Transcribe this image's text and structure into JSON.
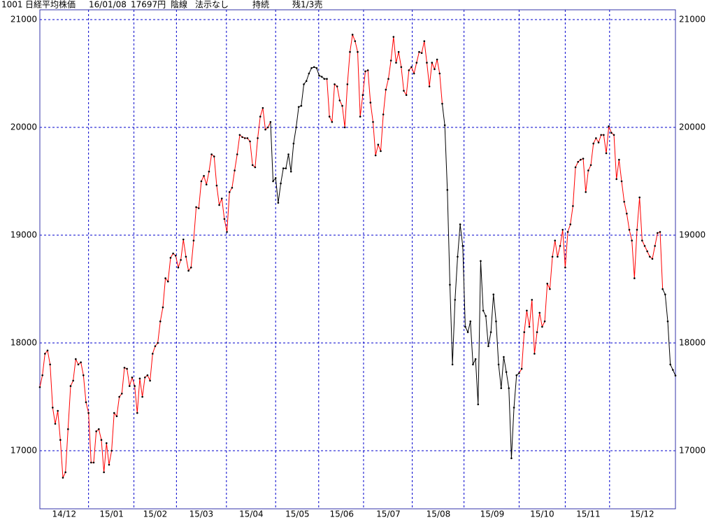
{
  "header": {
    "code": "1001",
    "name": "日経平均株価",
    "date": "16/01/08",
    "price": "17697円",
    "candle": "陰線",
    "signal": "法示なし",
    "trend": "持続",
    "remaining": "残1/3売"
  },
  "chart_data": {
    "type": "line",
    "ylim": [
      16461,
      21091
    ],
    "yticks": [
      17000,
      18000,
      19000,
      20000,
      21000
    ],
    "xlim": [
      0,
      248
    ],
    "xgrid": [
      19,
      36.7,
      53.3,
      72.8,
      92,
      108.8,
      126.3,
      145.3,
      165.5,
      187,
      205,
      222.3
    ],
    "xticks": [
      {
        "value": 9.5,
        "label": "14/12"
      },
      {
        "value": 28,
        "label": "15/01"
      },
      {
        "value": 45,
        "label": "15/02"
      },
      {
        "value": 63,
        "label": "15/03"
      },
      {
        "value": 82.5,
        "label": "15/04"
      },
      {
        "value": 100.5,
        "label": "15/05"
      },
      {
        "value": 117.8,
        "label": "15/06"
      },
      {
        "value": 136,
        "label": "15/07"
      },
      {
        "value": 155.5,
        "label": "15/08"
      },
      {
        "value": 176.5,
        "label": "15/09"
      },
      {
        "value": 196,
        "label": "15/10"
      },
      {
        "value": 214,
        "label": "15/11"
      },
      {
        "value": 235,
        "label": "15/12"
      }
    ],
    "grid": true,
    "grid_color": "#0000cc",
    "frame_color": "#3333aa",
    "point_color": "#000000",
    "series": [
      {
        "color": "#ff0000",
        "values": [
          17590,
          17700,
          17900,
          17930,
          17800,
          17400,
          17250,
          17370,
          17100,
          16750,
          16800,
          17200,
          17600,
          17650,
          17850,
          17800,
          17820,
          17700,
          17450,
          17350,
          16890,
          16890,
          17180,
          17200,
          17100,
          16800,
          17070,
          16870,
          17000,
          17350,
          17320,
          17500,
          17530,
          17770,
          17760,
          17600,
          17680,
          17600,
          17350,
          17670,
          17500,
          17680,
          17700,
          17650,
          17900,
          17970,
          18000,
          18200,
          18330,
          18600,
          18570,
          18790,
          18830,
          18810,
          18700,
          18770,
          18960,
          18800,
          18670,
          18700,
          18950,
          19260,
          19250,
          19500,
          19550,
          19470,
          19590,
          19750,
          19730,
          19460,
          19280,
          19340,
          19150,
          19030,
          19400,
          19440,
          19600,
          19750,
          19930,
          19910,
          19900,
          19900,
          19870,
          19650,
          19630,
          19900,
          20100,
          20180,
          19980,
          20000,
          20050,
          null,
          null,
          null,
          null,
          null,
          null,
          null,
          null,
          null,
          null,
          null,
          null,
          null,
          null,
          null,
          null,
          null,
          null,
          null,
          null,
          null,
          20450,
          20100,
          20050,
          20400,
          20380,
          20250,
          20200,
          20000,
          20400,
          20700,
          20860,
          20800,
          20700,
          20100,
          20300,
          20520,
          20530,
          20230,
          20050,
          19740,
          19840,
          19780,
          20120,
          20350,
          20450,
          20620,
          20840,
          20600,
          20700,
          20560,
          20340,
          20300,
          20530,
          20560,
          20500,
          20600,
          20700,
          20690,
          20800,
          20600,
          20380,
          20600,
          20540,
          20630,
          20500,
          20220,
          null,
          null,
          null,
          null,
          null,
          null,
          null,
          null,
          null,
          null,
          null,
          null,
          null,
          null,
          null,
          null,
          null,
          null,
          null,
          null,
          null,
          null,
          null,
          null,
          null,
          null,
          null,
          null,
          null,
          17720,
          17760,
          18100,
          18300,
          18150,
          18400,
          17900,
          18100,
          18280,
          18150,
          18200,
          18550,
          18500,
          18800,
          18950,
          18800,
          18900,
          19050,
          18700,
          19030,
          19100,
          19270,
          19630,
          19680,
          19700,
          19710,
          19400,
          19600,
          19650,
          19850,
          19900,
          19860,
          19930,
          19930,
          19760,
          20010,
          19950,
          19930,
          19520,
          19700,
          19500,
          19310,
          19200,
          19050,
          18950,
          18600,
          19050,
          19350,
          18950,
          18900,
          18850,
          18800,
          18780,
          18900,
          19020,
          19030,
          18500,
          null,
          null,
          null,
          null,
          null
        ]
      },
      {
        "color": "#000000",
        "values": [
          null,
          null,
          null,
          null,
          null,
          null,
          null,
          null,
          null,
          null,
          null,
          null,
          null,
          null,
          null,
          null,
          null,
          null,
          null,
          null,
          null,
          null,
          null,
          null,
          null,
          null,
          null,
          null,
          null,
          null,
          null,
          null,
          null,
          null,
          null,
          null,
          null,
          null,
          null,
          null,
          null,
          null,
          null,
          null,
          null,
          null,
          null,
          null,
          null,
          null,
          null,
          null,
          null,
          null,
          null,
          null,
          null,
          null,
          null,
          null,
          null,
          null,
          null,
          null,
          null,
          null,
          null,
          null,
          null,
          null,
          null,
          null,
          null,
          null,
          null,
          null,
          null,
          null,
          null,
          null,
          null,
          null,
          null,
          null,
          null,
          null,
          null,
          null,
          null,
          null,
          20050,
          19500,
          19530,
          19300,
          19480,
          19620,
          19620,
          19750,
          19590,
          19850,
          20000,
          20190,
          20200,
          20400,
          20430,
          20500,
          20550,
          20560,
          20550,
          20480,
          20470,
          20450,
          20450,
          null,
          null,
          null,
          null,
          null,
          null,
          null,
          null,
          null,
          null,
          null,
          null,
          null,
          null,
          null,
          null,
          null,
          null,
          null,
          null,
          null,
          null,
          null,
          null,
          null,
          null,
          null,
          null,
          null,
          null,
          null,
          null,
          null,
          null,
          null,
          null,
          null,
          null,
          null,
          null,
          null,
          null,
          null,
          null,
          20220,
          20020,
          19420,
          18540,
          17800,
          18400,
          18800,
          19100,
          18900,
          18150,
          18100,
          18200,
          17800,
          17850,
          17430,
          18760,
          18300,
          18250,
          17970,
          18100,
          18450,
          18200,
          17800,
          17580,
          17870,
          17730,
          17580,
          16930,
          17400,
          17700,
          17720,
          null,
          null,
          null,
          null,
          null,
          null,
          null,
          null,
          null,
          null,
          null,
          null,
          null,
          null,
          null,
          null,
          null,
          null,
          null,
          null,
          null,
          null,
          null,
          null,
          null,
          null,
          null,
          null,
          null,
          null,
          null,
          null,
          null,
          null,
          null,
          null,
          null,
          null,
          null,
          null,
          null,
          null,
          null,
          null,
          null,
          null,
          null,
          null,
          null,
          null,
          null,
          null,
          null,
          null,
          null,
          18500,
          18450,
          18200,
          17800,
          17750,
          17697
        ]
      }
    ]
  }
}
